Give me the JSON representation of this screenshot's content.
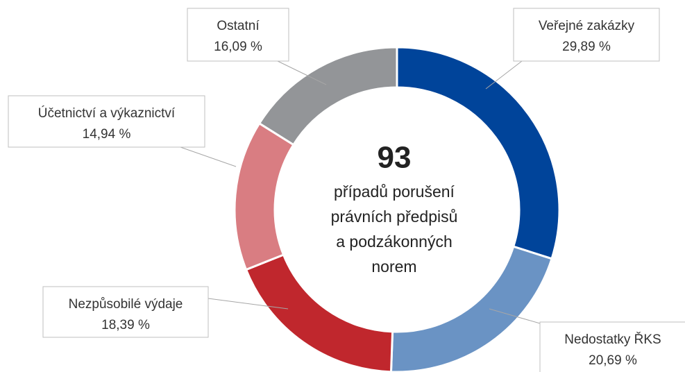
{
  "chart_data": {
    "type": "donut",
    "categories": [
      "Veřejné zakázky",
      "Nedostatky ŘKS",
      "Nezpůsobilé výdaje",
      "Účetnictví a výkaznictví",
      "Ostatní"
    ],
    "values": [
      29.89,
      20.69,
      18.39,
      14.94,
      16.09
    ],
    "value_labels": [
      "29,89 %",
      "20,69 %",
      "18,39 %",
      "14,94 %",
      "16,09 %"
    ],
    "colors": [
      "#00449a",
      "#6a93c4",
      "#c0272d",
      "#d97d82",
      "#939598"
    ],
    "center_value": 93,
    "center_lines": [
      "případů porušení",
      "právních předpisů",
      "a podzákonných",
      "norem"
    ]
  }
}
